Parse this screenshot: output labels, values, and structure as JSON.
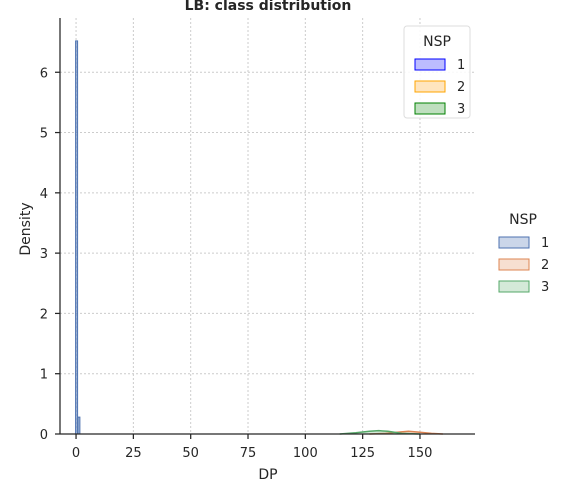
{
  "chart_data": {
    "type": "area",
    "title": "LB: class distribution",
    "xlabel": "DP",
    "ylabel": "Density",
    "xlim": [
      -7,
      174
    ],
    "ylim": [
      0,
      6.9
    ],
    "xticks": [
      0,
      25,
      50,
      75,
      100,
      125,
      150
    ],
    "yticks": [
      0,
      1,
      2,
      3,
      4,
      5,
      6
    ],
    "grid": true,
    "series": [
      {
        "name": "1",
        "kind": "histogram",
        "bins": [
          {
            "x0": -0.2,
            "x1": 0.2,
            "density": 6.52
          },
          {
            "x0": 0.8,
            "x1": 1.2,
            "density": 0.28
          }
        ]
      },
      {
        "name": "2",
        "kind": "kde",
        "x": [
          128,
          135,
          140,
          145,
          150,
          155,
          160
        ],
        "y": [
          0,
          0.01,
          0.03,
          0.045,
          0.03,
          0.01,
          0
        ]
      },
      {
        "name": "3",
        "kind": "kde",
        "x": [
          115,
          122,
          128,
          132,
          136,
          142,
          150
        ],
        "y": [
          0,
          0.02,
          0.045,
          0.055,
          0.045,
          0.01,
          0
        ]
      }
    ],
    "legend_inner": {
      "title": "NSP",
      "placement": "top-right",
      "entries": [
        {
          "label": "1",
          "color": "#0000ff",
          "fill": "#bcbcff"
        },
        {
          "label": "2",
          "color": "#ffa500",
          "fill": "#ffe5bf"
        },
        {
          "label": "3",
          "color": "#008000",
          "fill": "#bfdfbf"
        }
      ]
    },
    "legend_outer": {
      "title": "NSP",
      "placement": "right",
      "entries": [
        {
          "label": "1",
          "color": "#4c72b0",
          "fill": "#cbd6e9"
        },
        {
          "label": "2",
          "color": "#dd8452",
          "fill": "#f7dfd1"
        },
        {
          "label": "3",
          "color": "#55a868",
          "fill": "#d4e9d8"
        }
      ]
    },
    "colors": {
      "series_1": "#4c72b0",
      "series_2": "#dd8452",
      "series_3": "#55a868"
    }
  }
}
